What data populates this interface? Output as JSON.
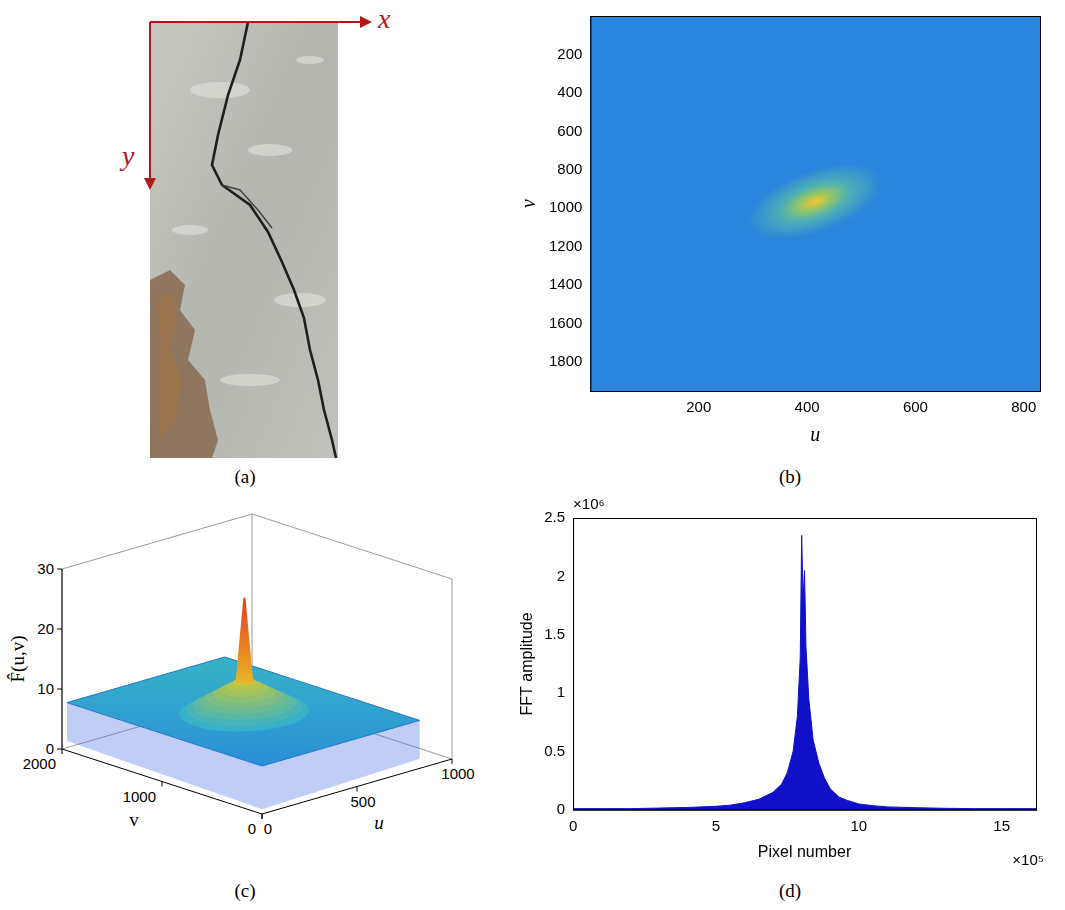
{
  "image_panel": {
    "panel_label": "(a)",
    "x_axis_label": "x",
    "y_axis_label": "y"
  },
  "chart_data": [
    {
      "panel_label": "(b)",
      "type": "heatmap",
      "xlabel": "u",
      "ylabel": "v",
      "xlim": [
        0,
        830
      ],
      "xticks": [
        200,
        400,
        600,
        800
      ],
      "ylim": [
        1950,
        0
      ],
      "yticks": [
        200,
        400,
        600,
        800,
        1000,
        1200,
        1400,
        1600,
        1800
      ],
      "color": "#2a86dc",
      "grid": false,
      "peak": {
        "u": 415,
        "v": 965
      },
      "halo": {
        "u_radius": 130,
        "v_radius": 160
      }
    },
    {
      "panel_label": "(c)",
      "type": "surface",
      "xlabel": "u",
      "ylabel": "v",
      "zlabel": "F̂(u,v)",
      "xlim": [
        0,
        1000
      ],
      "xticks": [
        0,
        500,
        1000
      ],
      "ylim": [
        0,
        2000
      ],
      "yticks": [
        0,
        1000,
        2000
      ],
      "zlim": [
        0,
        30
      ],
      "zticks": [
        0,
        10,
        20,
        30
      ],
      "surface_extent": {
        "u": [
          0,
          830
        ],
        "v": [
          0,
          1950
        ]
      },
      "base_level": 8,
      "plateau_level": 13,
      "halo": {
        "u_radius": 260,
        "v_radius": 420
      },
      "peak": {
        "u": 415,
        "v": 965,
        "z": 27
      }
    },
    {
      "panel_label": "(d)",
      "type": "line",
      "xlabel": "Pixel number",
      "ylabel": "FFT amplitude",
      "x_multiplier": "×10⁵",
      "y_multiplier": "×10⁶",
      "xlim": [
        0,
        16.2
      ],
      "xticks": [
        0,
        5,
        10,
        15
      ],
      "ylim": [
        0,
        2.5
      ],
      "yticks": [
        0,
        0.5,
        1,
        1.5,
        2,
        2.5
      ],
      "color": "#1010c8",
      "grid": false,
      "x": [
        0,
        1,
        2,
        3,
        4,
        5,
        5.5,
        6,
        6.5,
        7,
        7.3,
        7.5,
        7.7,
        7.85,
        7.95,
        8.0,
        8.05,
        8.1,
        8.15,
        8.25,
        8.4,
        8.6,
        8.8,
        9.0,
        9.3,
        9.6,
        10,
        10.5,
        11,
        12,
        13,
        14,
        15,
        16.2
      ],
      "values": [
        0.01,
        0.01,
        0.01,
        0.015,
        0.02,
        0.03,
        0.04,
        0.06,
        0.09,
        0.15,
        0.22,
        0.32,
        0.5,
        0.8,
        1.3,
        2.35,
        1.8,
        2.05,
        1.4,
        0.95,
        0.6,
        0.4,
        0.27,
        0.18,
        0.11,
        0.08,
        0.05,
        0.035,
        0.025,
        0.018,
        0.013,
        0.01,
        0.01,
        0.01
      ]
    }
  ]
}
